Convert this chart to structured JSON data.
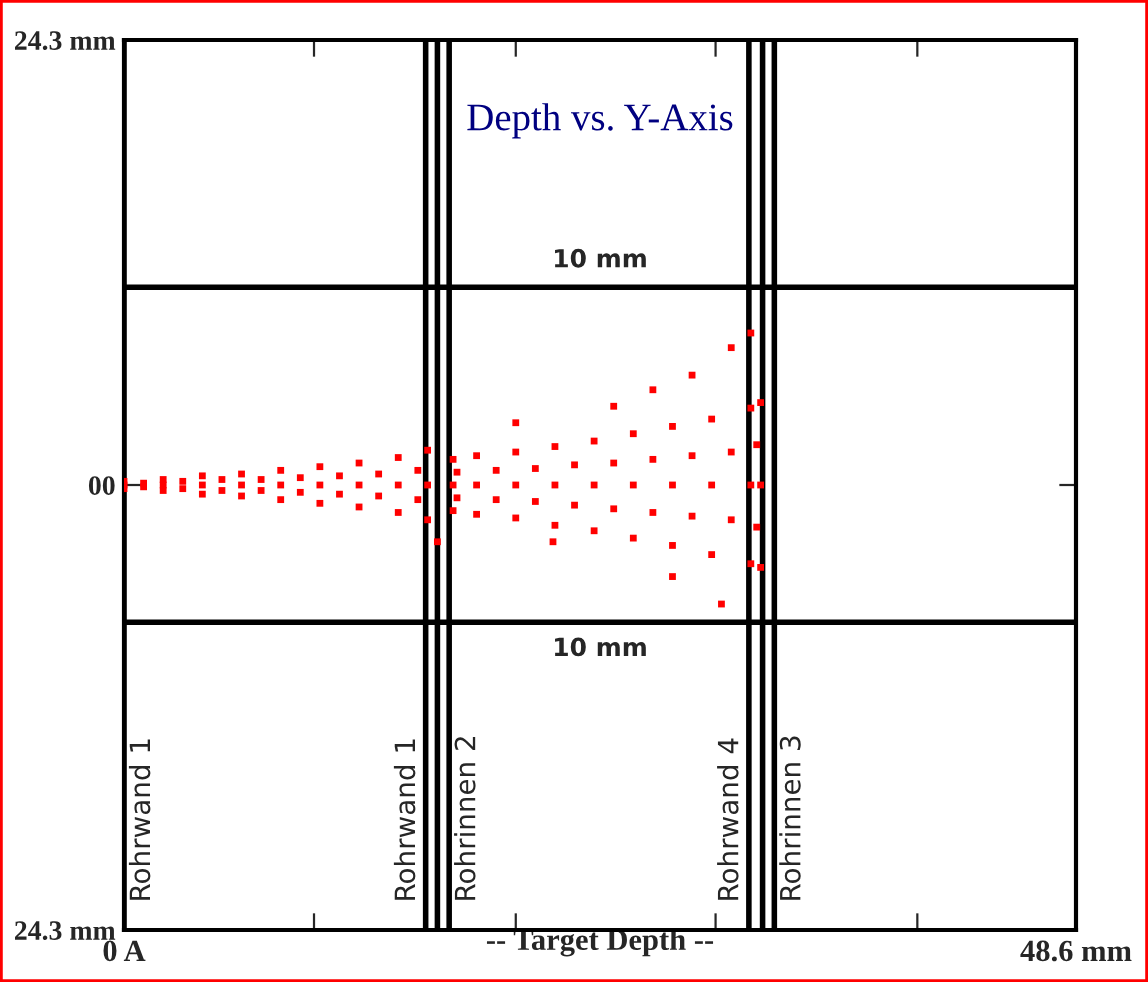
{
  "chart_data": {
    "type": "scatter",
    "title": "Depth vs. Y-Axis",
    "xlabel": "-- Target Depth --",
    "xlim": [
      0,
      48.6
    ],
    "ylim": [
      -24.3,
      24.3
    ],
    "xticks": [
      {
        "value": 0,
        "label": "0 A"
      },
      {
        "value": 9.7,
        "label": null
      },
      {
        "value": 20.0,
        "label": null
      },
      {
        "value": 30.2,
        "label": null
      },
      {
        "value": 40.5,
        "label": null
      },
      {
        "value": 48.6,
        "label": "48.6 mm"
      }
    ],
    "yticks": [
      {
        "value": -24.3,
        "label": "24.3 mm"
      },
      {
        "value": 0,
        "label": "00"
      },
      {
        "value": 24.3,
        "label": "24.3 mm"
      }
    ],
    "grid": false,
    "legend": false,
    "marker": "square",
    "ref_lines": [
      {
        "axis": "y",
        "value": 10.8,
        "label": "10 mm",
        "color": "#000000"
      },
      {
        "axis": "y",
        "value": -7.5,
        "label": "10 mm",
        "color": "#000000"
      },
      {
        "axis": "x",
        "value": 0,
        "label": "Rohrwand 1",
        "color": "#000000"
      },
      {
        "axis": "x",
        "value": 15.4,
        "label": null,
        "color": "#000000"
      },
      {
        "axis": "x",
        "value": 16.0,
        "label": "Rohrwand 1",
        "color": "#000000"
      },
      {
        "axis": "x",
        "value": 16.6,
        "label": "Rohrinnen 2",
        "color": "#000000"
      },
      {
        "axis": "x",
        "value": 31.9,
        "label": null,
        "color": "#000000"
      },
      {
        "axis": "x",
        "value": 32.6,
        "label": "Rohrwand 4",
        "color": "#000000"
      },
      {
        "axis": "x",
        "value": 33.2,
        "label": "Rohrinnen 3",
        "color": "#000000"
      }
    ],
    "series": [
      {
        "color": "#ff0000",
        "x": [
          0,
          0,
          0,
          2,
          2,
          2,
          4,
          4,
          4,
          6,
          6,
          6,
          8,
          8,
          8,
          10,
          10,
          10,
          12,
          12,
          12,
          14,
          14,
          14,
          15.5,
          15.5,
          15.5,
          1,
          3,
          5,
          7,
          9,
          11,
          13,
          15,
          1,
          3,
          5,
          7,
          9,
          11,
          13,
          15,
          16.8,
          16.8,
          16.8,
          18,
          18,
          18,
          20,
          20,
          20,
          22,
          22,
          22,
          24,
          24,
          24,
          26,
          26,
          26,
          28,
          28,
          28,
          30,
          30,
          30,
          32,
          32,
          32,
          32.5,
          32.5,
          32.5,
          17,
          19,
          21,
          23,
          25,
          27,
          29,
          31,
          32.3,
          17,
          19,
          21,
          23,
          25,
          27,
          29,
          31,
          32.3,
          31,
          32,
          29,
          27,
          25,
          20,
          16,
          21.9,
          28,
          30.5
        ],
        "values": [
          0.2,
          -0.2,
          0,
          0.3,
          -0.3,
          0,
          0.5,
          -0.5,
          0,
          0.6,
          -0.6,
          0,
          0.8,
          -0.8,
          0,
          1.0,
          -1.0,
          0,
          1.2,
          -1.2,
          0,
          1.5,
          -1.5,
          0,
          1.9,
          -1.9,
          0,
          0.1,
          0.2,
          0.3,
          0.3,
          0.4,
          0.5,
          0.6,
          0.8,
          -0.1,
          -0.2,
          -0.3,
          -0.3,
          -0.4,
          -0.5,
          -0.6,
          -0.8,
          1.4,
          -1.4,
          0,
          1.6,
          -1.6,
          0,
          1.8,
          -1.8,
          0,
          2.1,
          -2.2,
          0,
          2.4,
          -2.5,
          0,
          2.8,
          -2.9,
          0,
          3.2,
          -3.3,
          0,
          3.6,
          -3.8,
          0,
          4.2,
          -4.3,
          0,
          4.5,
          -4.5,
          0,
          0.7,
          0.8,
          0.9,
          1.1,
          1.2,
          1.4,
          1.6,
          1.8,
          2.2,
          -0.7,
          -0.8,
          -0.9,
          -1.1,
          -1.3,
          -1.5,
          -1.7,
          -1.9,
          -2.3,
          7.5,
          8.3,
          6.0,
          5.2,
          4.3,
          3.4,
          -3.1,
          -3.1,
          -5.0,
          -6.5
        ]
      }
    ]
  }
}
